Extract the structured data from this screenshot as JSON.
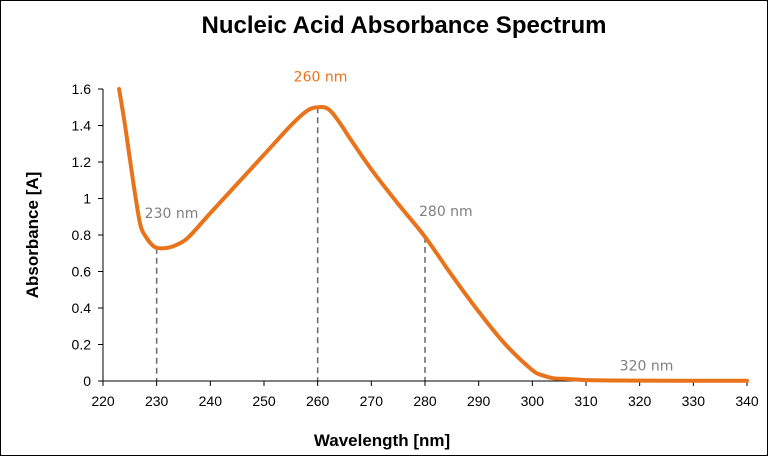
{
  "chart_data": {
    "type": "line",
    "title": "Nucleic Acid Absorbance Spectrum",
    "xlabel": "Wavelength [nm]",
    "ylabel": "Absorbance [A]",
    "xlim": [
      220,
      340
    ],
    "ylim": [
      0,
      1.6
    ],
    "x_ticks": [
      220,
      230,
      240,
      250,
      260,
      270,
      280,
      290,
      300,
      310,
      320,
      330,
      340
    ],
    "y_ticks": [
      "0",
      "0.2",
      "0.4",
      "0.6",
      "0.8",
      "1",
      "1.2",
      "1.4",
      "1.6"
    ],
    "grid": false,
    "series": [
      {
        "color": "#E8731A",
        "x": [
          223,
          224,
          225,
          226,
          227,
          228,
          229,
          230,
          232,
          234,
          236,
          240,
          245,
          250,
          255,
          258,
          260,
          262,
          264,
          266,
          270,
          275,
          280,
          285,
          290,
          295,
          300,
          302,
          304,
          306,
          308,
          310,
          315,
          320,
          330,
          340
        ],
        "y": [
          1.6,
          1.42,
          1.22,
          1.02,
          0.85,
          0.79,
          0.75,
          0.73,
          0.73,
          0.75,
          0.79,
          0.92,
          1.08,
          1.24,
          1.4,
          1.48,
          1.5,
          1.49,
          1.42,
          1.33,
          1.16,
          0.97,
          0.79,
          0.58,
          0.38,
          0.2,
          0.06,
          0.03,
          0.015,
          0.012,
          0.008,
          0.005,
          0.003,
          0.002,
          0.001,
          0.001
        ]
      }
    ],
    "annotations": [
      {
        "label": "230 nm",
        "x": 230,
        "y": 0.73,
        "color": "#7F7F7F",
        "dropline": true
      },
      {
        "label": "260 nm",
        "x": 260,
        "y": 1.5,
        "color": "#E8731A",
        "dropline": true
      },
      {
        "label": "280 nm",
        "x": 280,
        "y": 0.79,
        "color": "#7F7F7F",
        "dropline": true
      },
      {
        "label": "320 nm",
        "x": 320,
        "y": 0.002,
        "color": "#7F7F7F",
        "dropline": false
      }
    ]
  }
}
